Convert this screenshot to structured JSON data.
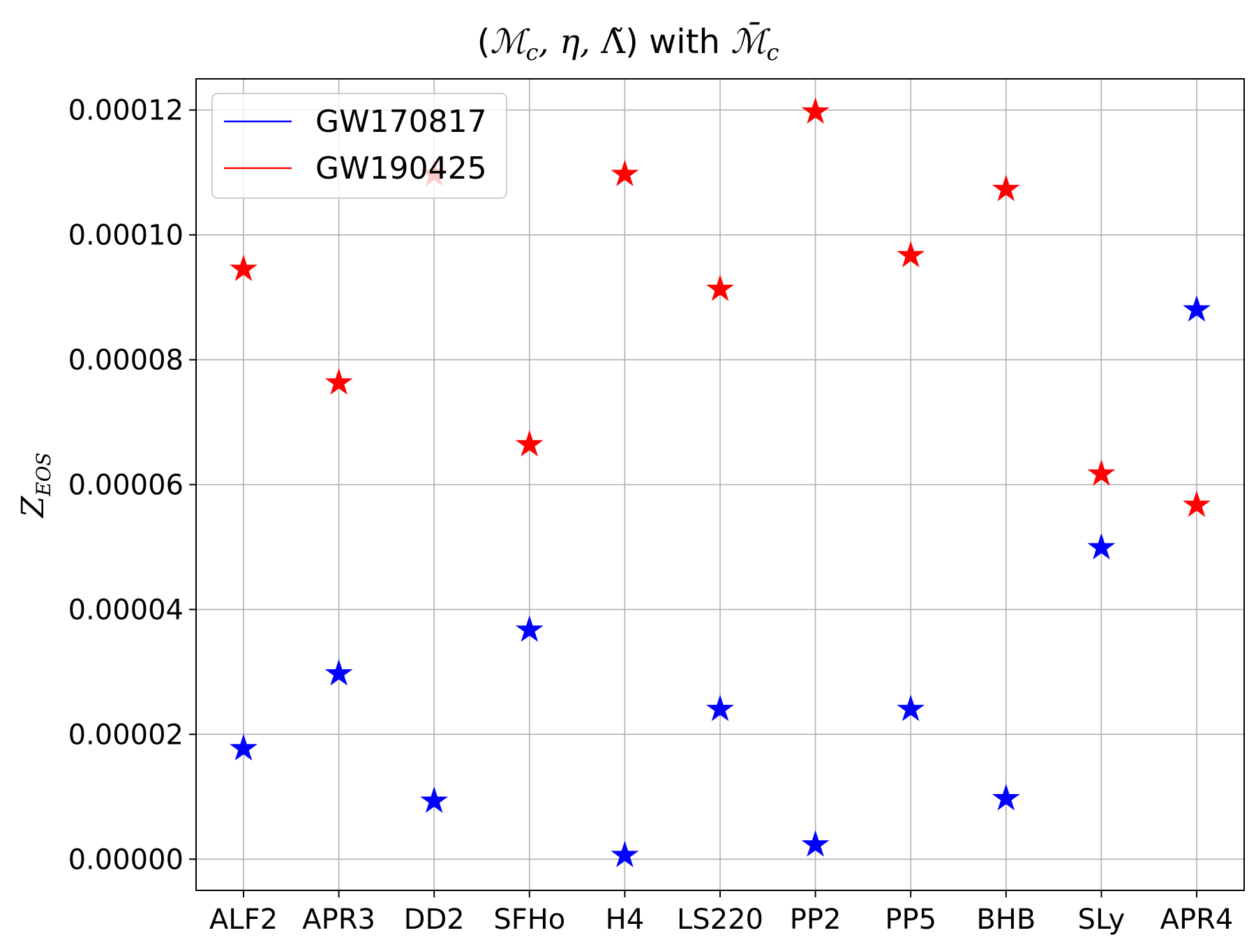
{
  "chart_data": {
    "type": "scatter",
    "title": "(ℳc, η, Λ̃) with M̄c",
    "title_parts": {
      "lead": "(",
      "m": "ℳ",
      "sub": "c",
      "mid": ", η, ",
      "lam": "Λ̃",
      "with": ") with ",
      "m2": "ℳ̄",
      "sub2": "c"
    },
    "xlabel": "",
    "ylabel": "Z",
    "ylabel_sub": "EOS",
    "categories": [
      "ALF2",
      "APR3",
      "DD2",
      "SFHo",
      "H4",
      "LS220",
      "PP2",
      "PP5",
      "BHB",
      "SLy",
      "APR4"
    ],
    "ylim": [
      -5e-06,
      0.000125
    ],
    "yticks": [
      0.0,
      2e-05,
      4e-05,
      6e-05,
      8e-05,
      0.0001,
      0.00012
    ],
    "ytick_labels": [
      "0.00000",
      "0.00002",
      "0.00004",
      "0.00006",
      "0.00008",
      "0.00010",
      "0.00012"
    ],
    "grid": true,
    "legend_position": "top-left",
    "marker": "star",
    "series": [
      {
        "name": "GW170817",
        "color": "#0000ff",
        "values": [
          1.77e-05,
          2.97e-05,
          9.3e-06,
          3.67e-05,
          6e-07,
          2.4e-05,
          2.3e-06,
          2.4e-05,
          9.7e-06,
          4.99e-05,
          8.8e-05
        ]
      },
      {
        "name": "GW190425",
        "color": "#ff0000",
        "values": [
          9.45e-05,
          7.63e-05,
          0.0001097,
          6.64e-05,
          0.0001097,
          9.13e-05,
          0.0001197,
          9.67e-05,
          0.0001073,
          6.17e-05,
          5.67e-05
        ]
      }
    ]
  }
}
